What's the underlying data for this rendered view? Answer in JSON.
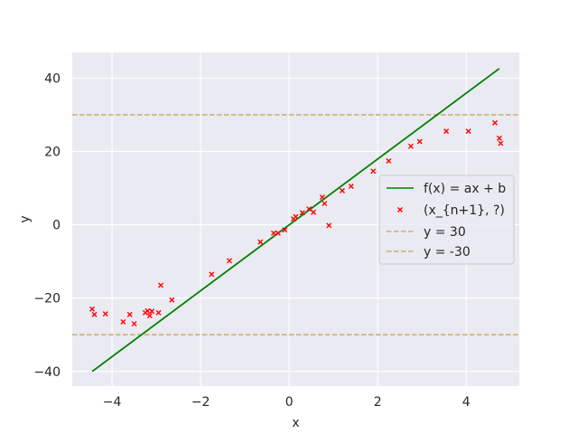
{
  "chart_data": {
    "type": "scatter",
    "xlabel": "x",
    "ylabel": "y",
    "xlim": [
      -4.9,
      5.2
    ],
    "ylim": [
      -44,
      47
    ],
    "x_ticks": [
      -4,
      -2,
      0,
      2,
      4
    ],
    "y_ticks": [
      -40,
      -20,
      0,
      20,
      40
    ],
    "x_tick_labels": [
      "−4",
      "−2",
      "0",
      "2",
      "4"
    ],
    "y_tick_labels": [
      "−40",
      "−20",
      "0",
      "20",
      "40"
    ],
    "grid": true,
    "legend_position": "center-right",
    "series": [
      {
        "name": "f(x) = ax + b",
        "kind": "line",
        "color": "#008000",
        "x": [
          -4.45,
          4.75
        ],
        "y": [
          -40,
          42.6
        ]
      },
      {
        "name": "(x_{n+1}, ?)",
        "kind": "scatter",
        "marker": "x",
        "color": "#ff0000",
        "x": [
          -4.45,
          -4.4,
          -4.15,
          -3.75,
          -3.6,
          -3.5,
          -3.25,
          -3.2,
          -3.15,
          -3.1,
          -2.95,
          -2.9,
          -2.65,
          -1.75,
          -1.35,
          -0.65,
          -0.35,
          -0.25,
          -0.1,
          0.1,
          0.15,
          0.3,
          0.45,
          0.55,
          0.75,
          0.8,
          0.9,
          1.2,
          1.4,
          1.9,
          2.25,
          2.75,
          2.95,
          3.55,
          4.05,
          4.65,
          4.75,
          4.78
        ],
        "y": [
          -23,
          -24.5,
          -24.3,
          -26.5,
          -24.5,
          -27,
          -24,
          -23.5,
          -24.8,
          -23.6,
          -24,
          -16.5,
          -20.5,
          -13.5,
          -9.8,
          -4.7,
          -2.3,
          -2.3,
          -1.4,
          1.6,
          2.2,
          3.3,
          4.3,
          3.4,
          7.5,
          5.8,
          -0.2,
          9.3,
          10.5,
          14.6,
          17.4,
          21.4,
          22.7,
          25.5,
          25.5,
          27.8,
          23.6,
          22.2
        ]
      },
      {
        "name": "y = 30",
        "kind": "hline",
        "color": "#d0b06a",
        "y": 30
      },
      {
        "name": "y = -30",
        "kind": "hline",
        "color": "#d0b06a",
        "y": -30
      }
    ],
    "colors": {
      "plot_background": "#eaeaf2",
      "grid": "#ffffff",
      "text": "#262626"
    }
  }
}
